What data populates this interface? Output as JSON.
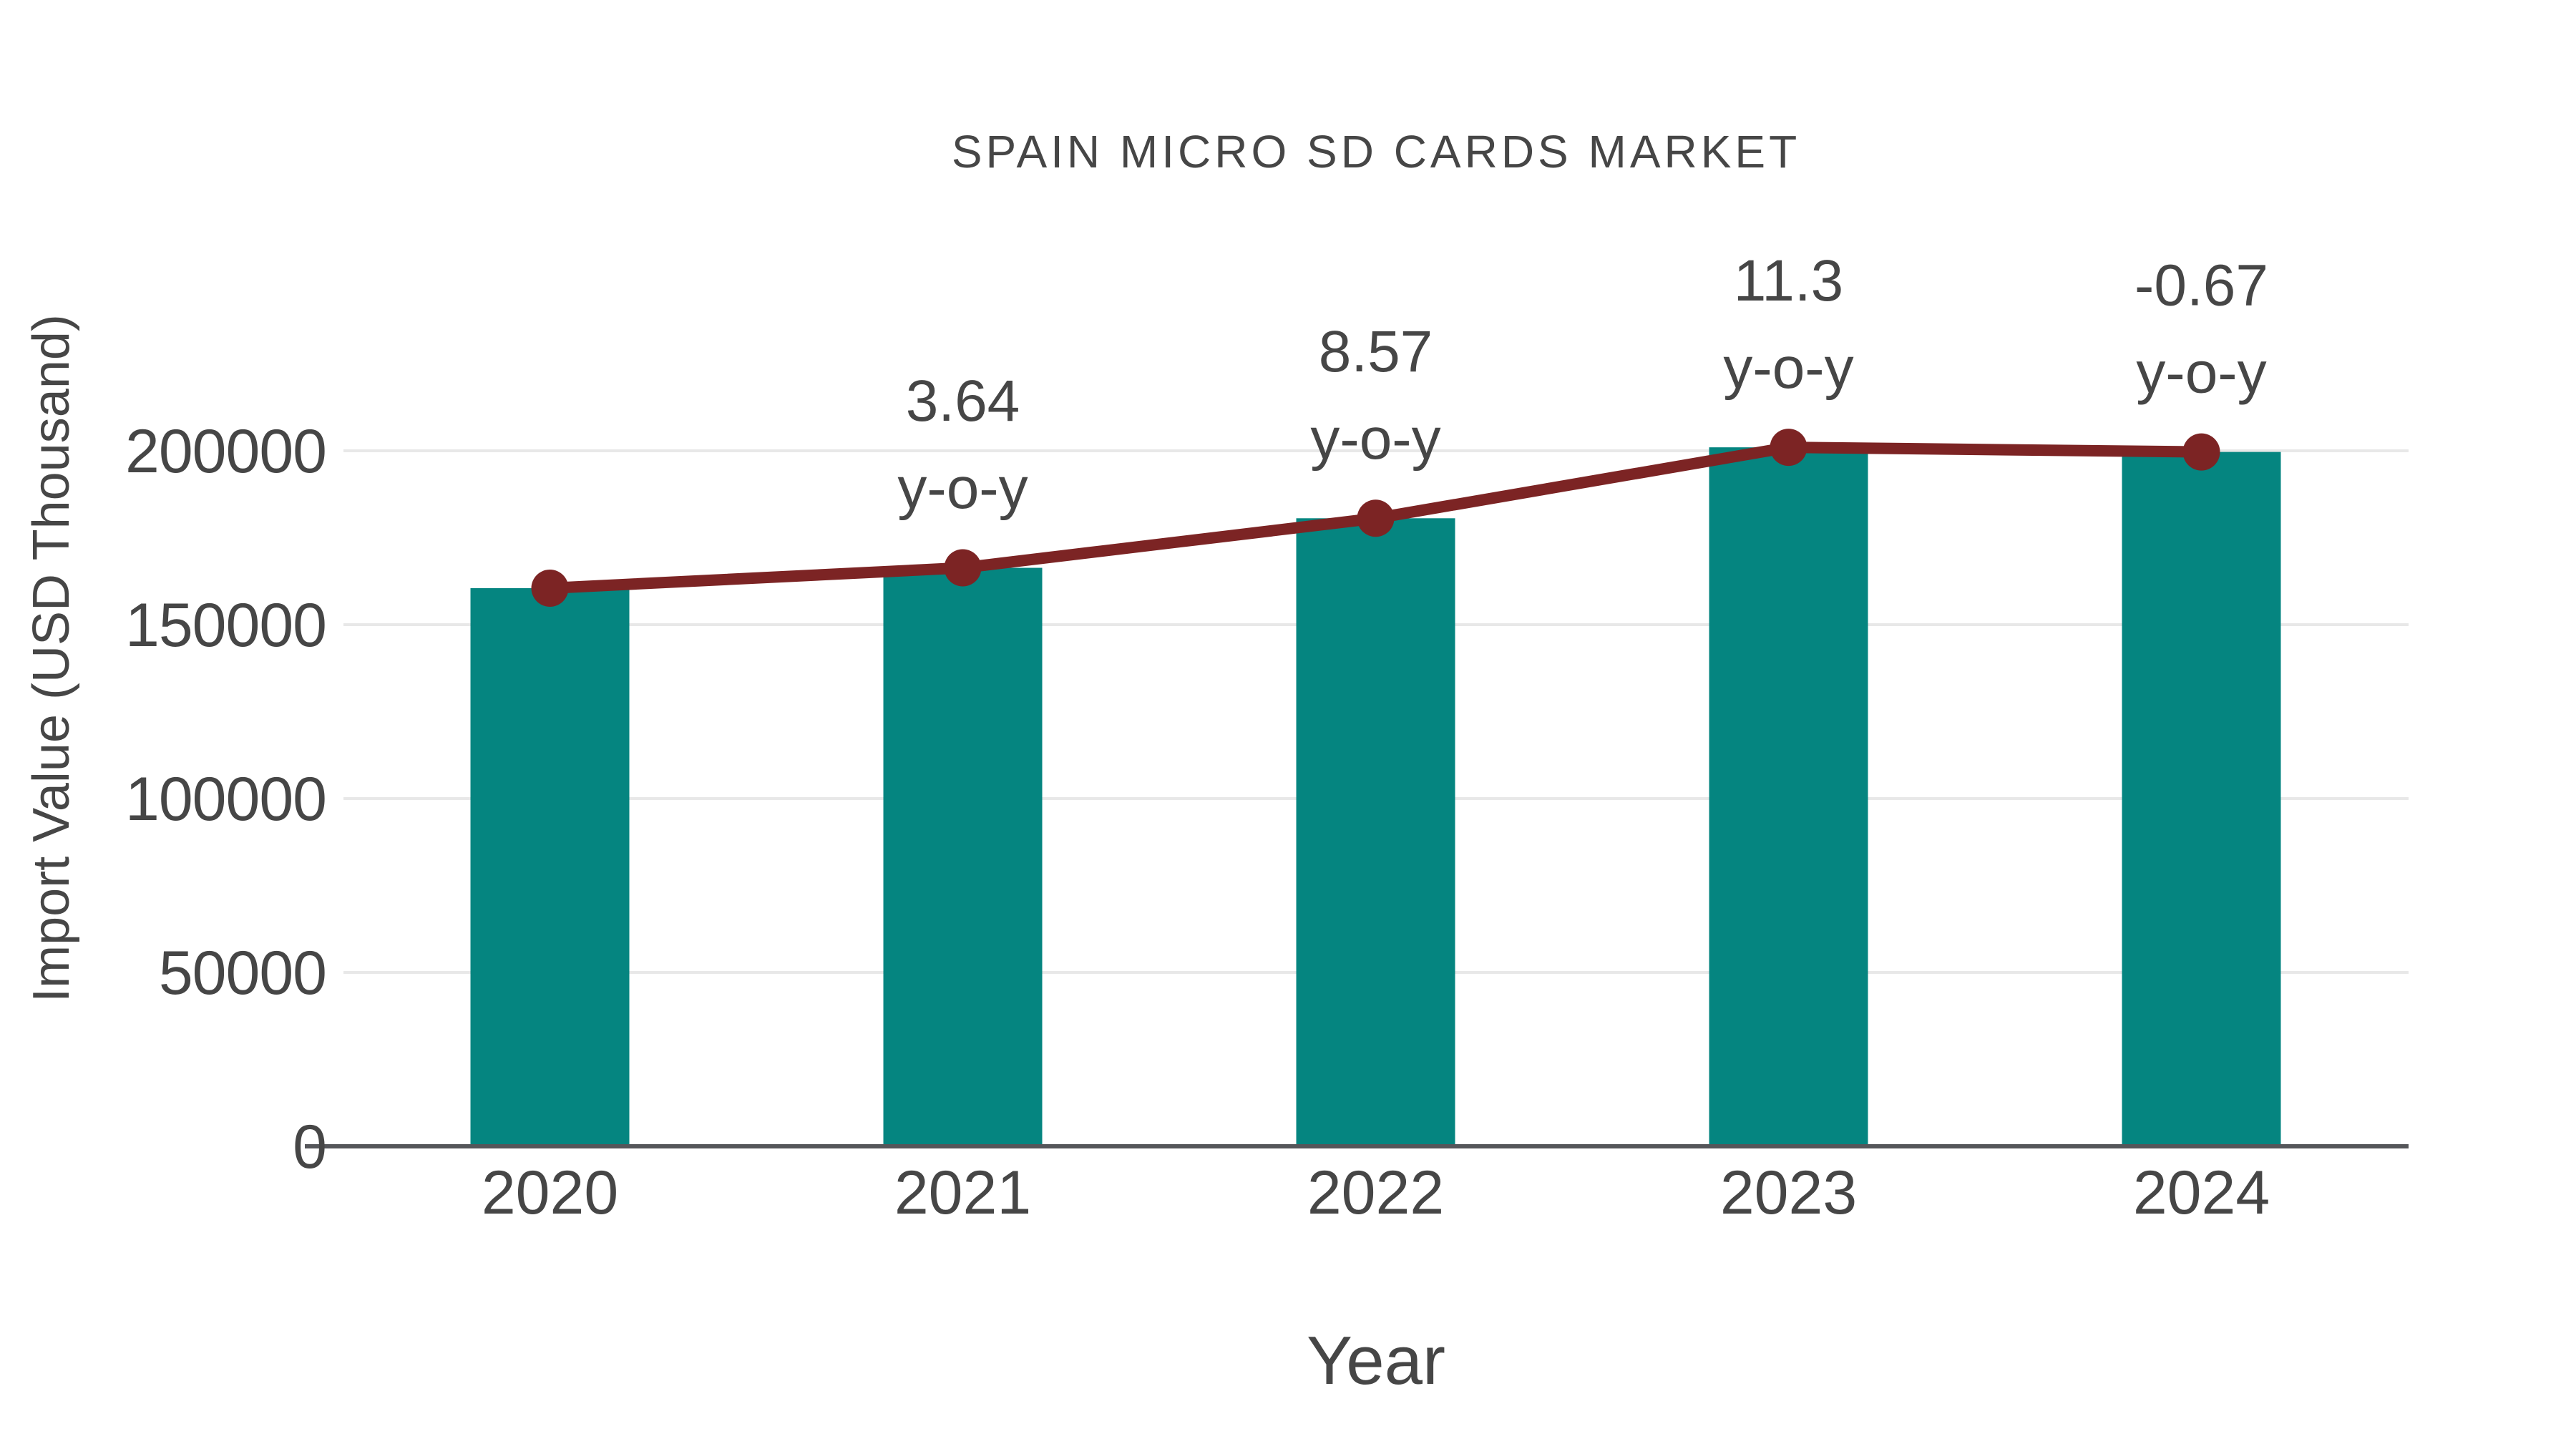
{
  "page": {
    "background": "#FFFFFF"
  },
  "chart_data": {
    "type": "bar",
    "subtype": "bar-with-line-overlay",
    "title": "SPAIN MICRO SD CARDS MARKET",
    "xlabel": "Year",
    "ylabel": "Import Value (USD Thousand)",
    "categories": [
      "2020",
      "2021",
      "2022",
      "2023",
      "2024"
    ],
    "series": [
      {
        "name": "Import Value (USD Thousand)",
        "type": "bar",
        "values": [
          160500,
          166350,
          180600,
          201000,
          199670
        ]
      },
      {
        "name": "y-o-y change (%)",
        "type": "line",
        "anchored_to": "bar-top-values",
        "yoy_percent": [
          null,
          3.64,
          8.57,
          11.3,
          -0.67
        ],
        "point_labels": [
          "",
          "3.64",
          "8.57",
          "11.3",
          "-0.67"
        ],
        "point_label_suffix": "y-o-y",
        "markers": "circle"
      }
    ],
    "yticks": [
      0,
      50000,
      100000,
      150000,
      200000
    ],
    "ylim": [
      0,
      215000
    ],
    "grid": "horizontal",
    "legend": "none",
    "colors": {
      "bar": "#058580",
      "line": "#7C2424",
      "marker": "#7C2424",
      "text": "#464646",
      "grid": "#E8E8E8",
      "axis": "#55565A",
      "background": "#FFFFFF"
    }
  }
}
